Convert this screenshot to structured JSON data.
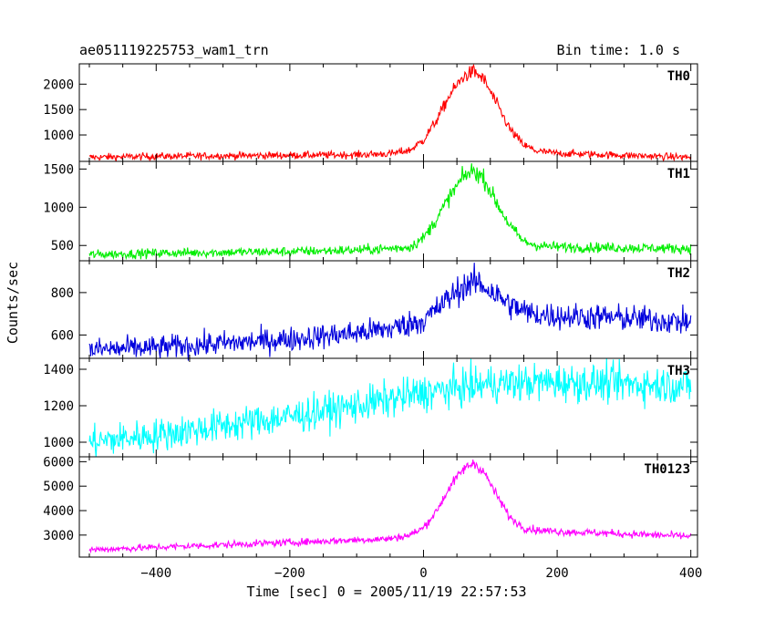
{
  "header": {
    "title": "ae051119225753_wam1_trn",
    "bin_time": "Bin time: 1.0 s"
  },
  "chart_data": {
    "type": "line",
    "xlabel": "Time [sec] 0 = 2005/11/19 22:57:53",
    "ylabel": "Counts/sec",
    "xlim": [
      -515,
      410
    ],
    "x_ticks": [
      -400,
      -200,
      0,
      200,
      400
    ],
    "x_tick_labels": [
      "−400",
      "−200",
      "0",
      "200",
      "400"
    ],
    "series": [
      {
        "name": "TH0",
        "color": "#ff0000",
        "ylim": [
          480,
          2400
        ],
        "y_ticks": [
          1000,
          1500,
          2000
        ],
        "x": [
          -500,
          -400,
          -300,
          -200,
          -100,
          -50,
          -20,
          0,
          20,
          40,
          60,
          75,
          90,
          110,
          130,
          150,
          170,
          200,
          300,
          400
        ],
        "y": [
          560,
          580,
          590,
          600,
          610,
          630,
          700,
          900,
          1300,
          1800,
          2150,
          2250,
          2100,
          1600,
          1100,
          800,
          680,
          640,
          600,
          560
        ]
      },
      {
        "name": "TH1",
        "color": "#00ee00",
        "ylim": [
          300,
          1600
        ],
        "y_ticks": [
          500,
          1000,
          1500
        ],
        "x": [
          -500,
          -400,
          -300,
          -200,
          -100,
          -50,
          -20,
          0,
          20,
          40,
          60,
          75,
          90,
          110,
          130,
          150,
          170,
          200,
          300,
          400
        ],
        "y": [
          380,
          400,
          410,
          420,
          440,
          460,
          480,
          600,
          850,
          1150,
          1400,
          1480,
          1380,
          1050,
          750,
          550,
          500,
          480,
          470,
          460
        ]
      },
      {
        "name": "TH2",
        "color": "#0000dd",
        "ylim": [
          490,
          950
        ],
        "y_ticks": [
          600,
          800
        ],
        "x": [
          -500,
          -400,
          -300,
          -200,
          -100,
          -50,
          0,
          20,
          40,
          60,
          80,
          100,
          130,
          160,
          200,
          300,
          400
        ],
        "y": [
          530,
          540,
          560,
          580,
          610,
          630,
          670,
          720,
          780,
          830,
          850,
          810,
          740,
          700,
          690,
          680,
          660
        ]
      },
      {
        "name": "TH3",
        "color": "#00ffff",
        "ylim": [
          920,
          1460
        ],
        "y_ticks": [
          1000,
          1200,
          1400
        ],
        "x": [
          -500,
          -400,
          -300,
          -200,
          -100,
          0,
          100,
          200,
          300,
          400
        ],
        "y": [
          1000,
          1040,
          1090,
          1140,
          1200,
          1270,
          1320,
          1330,
          1320,
          1310
        ]
      },
      {
        "name": "TH0123",
        "color": "#ff00ff",
        "ylim": [
          2100,
          6200
        ],
        "y_ticks": [
          3000,
          4000,
          5000,
          6000
        ],
        "x": [
          -500,
          -400,
          -300,
          -200,
          -100,
          -50,
          -20,
          0,
          20,
          40,
          60,
          75,
          90,
          110,
          130,
          150,
          170,
          200,
          300,
          400
        ],
        "y": [
          2400,
          2500,
          2600,
          2700,
          2800,
          2850,
          3000,
          3300,
          4000,
          5000,
          5700,
          5950,
          5600,
          4600,
          3700,
          3300,
          3200,
          3150,
          3050,
          2950
        ]
      }
    ]
  }
}
